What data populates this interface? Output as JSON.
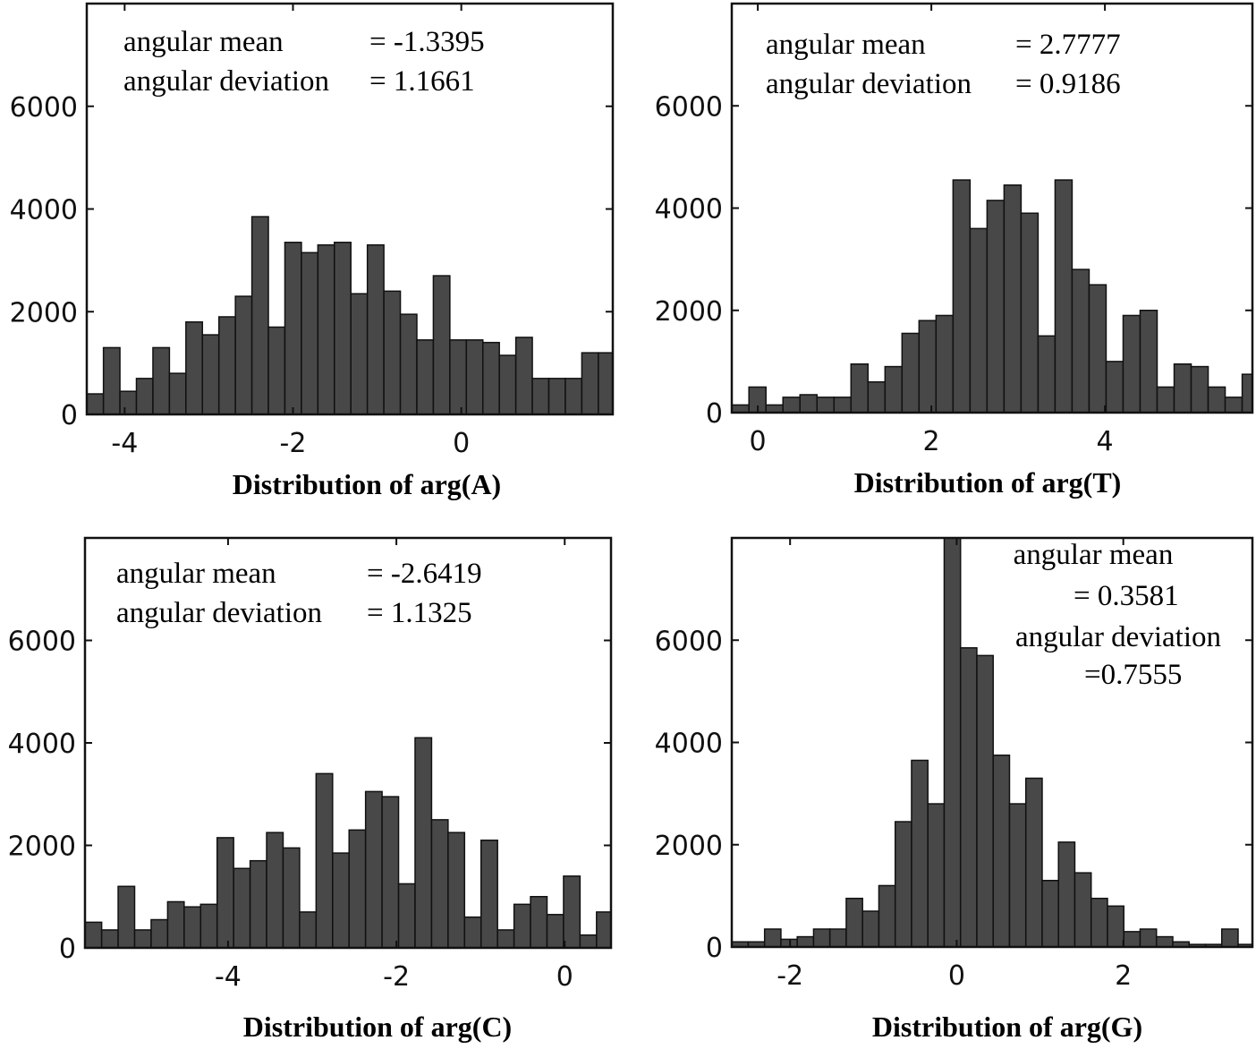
{
  "chart_data": [
    {
      "type": "bar",
      "xlabel": "Distribution of arg(A)",
      "annotation": [
        {
          "label": "angular mean",
          "eq": "= -1.3395"
        },
        {
          "label": "angular deviation",
          "eq": "= 1.1661"
        }
      ],
      "xlim": [
        -4.45,
        1.8
      ],
      "ylim": [
        0,
        8000
      ],
      "xticks": [
        -4,
        -2,
        0
      ],
      "xtick_labels": [
        "-4",
        "-2",
        "0"
      ],
      "yticks": [
        0,
        2000,
        4000,
        6000
      ],
      "ytick_labels": [
        "0",
        "2000",
        "4000",
        "6000"
      ],
      "bin_width": 0.196,
      "bin_centers": [
        -4.35,
        -4.154,
        -3.958,
        -3.762,
        -3.566,
        -3.37,
        -3.174,
        -2.978,
        -2.782,
        -2.586,
        -2.39,
        -2.194,
        -1.998,
        -1.802,
        -1.606,
        -1.41,
        -1.214,
        -1.018,
        -0.822,
        -0.626,
        -0.43,
        -0.234,
        -0.038,
        0.158,
        0.354,
        0.55,
        0.746,
        0.942,
        1.138,
        1.334,
        1.53,
        1.726
      ],
      "values": [
        400,
        1300,
        450,
        700,
        1300,
        800,
        1800,
        1550,
        1900,
        2300,
        3850,
        1700,
        3350,
        3150,
        3300,
        3350,
        2350,
        3300,
        2400,
        1950,
        1450,
        2700,
        1450,
        1450,
        1400,
        1150,
        1500,
        700,
        700,
        700,
        1200,
        1200
      ]
    },
    {
      "type": "bar",
      "xlabel": "Distribution of arg(T)",
      "annotation": [
        {
          "label": "angular mean",
          "eq": "= 2.7777"
        },
        {
          "label": "angular deviation",
          "eq": "= 0.9186"
        }
      ],
      "xlim": [
        -0.3,
        5.7
      ],
      "ylim": [
        0,
        8000
      ],
      "xticks": [
        0,
        2,
        4
      ],
      "xtick_labels": [
        "0",
        "2",
        "4"
      ],
      "yticks": [
        0,
        2000,
        4000,
        6000
      ],
      "ytick_labels": [
        "0",
        "2000",
        "4000",
        "6000"
      ],
      "bin_width": 0.196,
      "bin_centers": [
        -0.2,
        -0.004,
        0.192,
        0.388,
        0.584,
        0.78,
        0.976,
        1.172,
        1.368,
        1.564,
        1.76,
        1.956,
        2.152,
        2.348,
        2.544,
        2.74,
        2.936,
        3.132,
        3.328,
        3.524,
        3.72,
        3.916,
        4.112,
        4.308,
        4.504,
        4.7,
        4.896,
        5.092,
        5.288,
        5.484,
        5.68
      ],
      "values": [
        150,
        500,
        150,
        300,
        350,
        300,
        300,
        950,
        600,
        900,
        1550,
        1800,
        1900,
        4550,
        3600,
        4150,
        4450,
        3900,
        1500,
        4550,
        2800,
        2500,
        1000,
        1900,
        2000,
        500,
        950,
        900,
        500,
        300,
        750
      ]
    },
    {
      "type": "bar",
      "xlabel": "Distribution of arg(C)",
      "annotation": [
        {
          "label": "angular mean",
          "eq": "= -2.6419"
        },
        {
          "label": "angular deviation",
          "eq": "= 1.1325"
        }
      ],
      "xlim": [
        -5.7,
        0.55
      ],
      "ylim": [
        0,
        8000
      ],
      "xticks": [
        -4,
        -2,
        0
      ],
      "xtick_labels": [
        "-4",
        "-2",
        "0"
      ],
      "yticks": [
        0,
        2000,
        4000,
        6000
      ],
      "ytick_labels": [
        "0",
        "2000",
        "4000",
        "6000"
      ],
      "bin_width": 0.196,
      "bin_centers": [
        -5.6,
        -5.404,
        -5.208,
        -5.012,
        -4.816,
        -4.62,
        -4.424,
        -4.228,
        -4.032,
        -3.836,
        -3.64,
        -3.444,
        -3.248,
        -3.052,
        -2.856,
        -2.66,
        -2.464,
        -2.268,
        -2.072,
        -1.876,
        -1.68,
        -1.484,
        -1.288,
        -1.092,
        -0.896,
        -0.7,
        -0.504,
        -0.308,
        -0.112,
        0.084,
        0.28,
        0.476
      ],
      "values": [
        500,
        350,
        1200,
        350,
        550,
        900,
        800,
        850,
        2150,
        1550,
        1700,
        2250,
        1950,
        700,
        3400,
        1850,
        2300,
        3050,
        2950,
        1250,
        4100,
        2500,
        2250,
        600,
        2100,
        350,
        850,
        1000,
        650,
        1400,
        250,
        700
      ]
    },
    {
      "type": "bar",
      "xlabel": "Distribution of arg(G)",
      "annotation": [
        {
          "label": "angular mean",
          "eq": "= 0.3581"
        },
        {
          "label": "angular deviation",
          "eq": "=0.7555"
        }
      ],
      "xlim": [
        -2.7,
        3.55
      ],
      "ylim": [
        0,
        8000
      ],
      "xticks": [
        -2,
        0,
        2
      ],
      "xtick_labels": [
        "-2",
        "0",
        "2"
      ],
      "yticks": [
        0,
        2000,
        4000,
        6000
      ],
      "ytick_labels": [
        "0",
        "2000",
        "4000",
        "6000"
      ],
      "bin_width": 0.196,
      "bin_centers": [
        -2.6,
        -2.404,
        -2.208,
        -2.012,
        -1.816,
        -1.62,
        -1.424,
        -1.228,
        -1.032,
        -0.836,
        -0.64,
        -0.444,
        -0.248,
        -0.052,
        0.144,
        0.34,
        0.536,
        0.732,
        0.928,
        1.124,
        1.32,
        1.516,
        1.712,
        1.908,
        2.104,
        2.3,
        2.496,
        2.692,
        2.888,
        3.084,
        3.28,
        3.476
      ],
      "values": [
        100,
        100,
        350,
        150,
        200,
        350,
        350,
        950,
        700,
        1200,
        2450,
        3650,
        2800,
        8000,
        5850,
        5700,
        3750,
        2800,
        3300,
        1300,
        2050,
        1450,
        950,
        800,
        300,
        350,
        200,
        100,
        50,
        50,
        350,
        50
      ]
    }
  ]
}
